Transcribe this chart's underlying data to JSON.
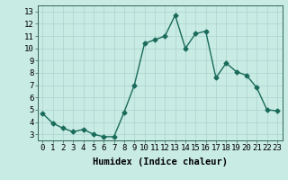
{
  "x": [
    0,
    1,
    2,
    3,
    4,
    5,
    6,
    7,
    8,
    9,
    10,
    11,
    12,
    13,
    14,
    15,
    16,
    17,
    18,
    19,
    20,
    21,
    22,
    23
  ],
  "y": [
    4.7,
    3.9,
    3.5,
    3.2,
    3.4,
    3.0,
    2.8,
    2.8,
    4.8,
    7.0,
    10.4,
    10.7,
    11.0,
    12.7,
    10.0,
    11.2,
    11.4,
    7.6,
    8.8,
    8.1,
    7.8,
    6.8,
    5.0,
    4.9
  ],
  "line_color": "#1a6b5a",
  "marker": "D",
  "marker_size": 2.5,
  "bg_color": "#c8ebe4",
  "grid_color": "#aad4cc",
  "xlabel": "Humidex (Indice chaleur)",
  "xlim": [
    -0.5,
    23.5
  ],
  "ylim": [
    2.5,
    13.5
  ],
  "yticks": [
    3,
    4,
    5,
    6,
    7,
    8,
    9,
    10,
    11,
    12,
    13
  ],
  "xticks": [
    0,
    1,
    2,
    3,
    4,
    5,
    6,
    7,
    8,
    9,
    10,
    11,
    12,
    13,
    14,
    15,
    16,
    17,
    18,
    19,
    20,
    21,
    22,
    23
  ],
  "xlabel_fontsize": 7.5,
  "tick_fontsize": 6.5,
  "linewidth": 1.0
}
